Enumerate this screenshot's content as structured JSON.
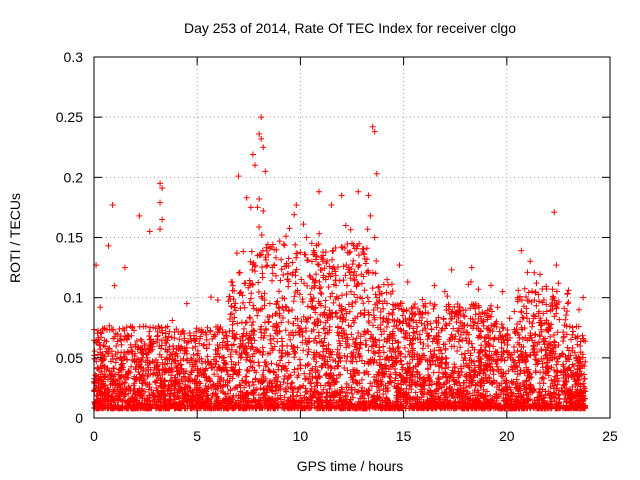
{
  "chart_data": {
    "type": "scatter",
    "title": "Day 253 of 2014, Rate Of TEC Index for receiver clgo",
    "xlabel": "GPS time / hours",
    "ylabel": "ROTI / TECUs",
    "xlim": [
      0,
      25
    ],
    "ylim": [
      0,
      0.3
    ],
    "x_ticks": [
      0,
      5,
      10,
      15,
      20,
      25
    ],
    "y_ticks": [
      0,
      0.05,
      0.1,
      0.15,
      0.2,
      0.25,
      0.3
    ],
    "x_tick_labels": [
      "0",
      "5",
      "10",
      "15",
      "20",
      "25"
    ],
    "y_tick_labels": [
      "0",
      "0.05",
      "0.1",
      "0.15",
      "0.2",
      "0.25",
      "0.3"
    ],
    "grid": true,
    "marker": "+",
    "marker_color": "#ff0000",
    "x_data_range": [
      0,
      23.8
    ],
    "series": [
      {
        "name": "ROTI",
        "points": [
          [
            0.1,
            0.127
          ],
          [
            0.9,
            0.177
          ],
          [
            0.7,
            0.143
          ],
          [
            2.2,
            0.168
          ],
          [
            2.7,
            0.155
          ],
          [
            3.2,
            0.195
          ],
          [
            3.3,
            0.191
          ],
          [
            3.2,
            0.179
          ],
          [
            3.3,
            0.165
          ],
          [
            3.2,
            0.157
          ],
          [
            7.0,
            0.201
          ],
          [
            7.4,
            0.183
          ],
          [
            7.6,
            0.175
          ],
          [
            7.7,
            0.219
          ],
          [
            7.8,
            0.21
          ],
          [
            8.0,
            0.236
          ],
          [
            8.1,
            0.25
          ],
          [
            8.1,
            0.232
          ],
          [
            8.2,
            0.225
          ],
          [
            8.3,
            0.205
          ],
          [
            8.0,
            0.182
          ],
          [
            8.2,
            0.172
          ],
          [
            9.7,
            0.169
          ],
          [
            9.8,
            0.177
          ],
          [
            10.9,
            0.188
          ],
          [
            11.5,
            0.177
          ],
          [
            12.0,
            0.185
          ],
          [
            12.2,
            0.16
          ],
          [
            12.8,
            0.188
          ],
          [
            13.3,
            0.185
          ],
          [
            13.4,
            0.168
          ],
          [
            13.5,
            0.242
          ],
          [
            13.6,
            0.238
          ],
          [
            13.7,
            0.203
          ],
          [
            13.6,
            0.15
          ],
          [
            22.3,
            0.171
          ],
          [
            22.4,
            0.127
          ],
          [
            22.5,
            0.112
          ],
          [
            21.0,
            0.121
          ],
          [
            19.8,
            0.105
          ],
          [
            18.3,
            0.125
          ],
          [
            16.5,
            0.11
          ],
          [
            15.2,
            0.113
          ],
          [
            14.8,
            0.127
          ],
          [
            14.2,
            0.115
          ],
          [
            1.5,
            0.125
          ],
          [
            1.0,
            0.11
          ],
          [
            5.5,
            0.075
          ],
          [
            6.0,
            0.098
          ],
          [
            6.7,
            0.113
          ],
          [
            9.0,
            0.147
          ],
          [
            9.3,
            0.151
          ],
          [
            10.3,
            0.15
          ],
          [
            11.1,
            0.135
          ],
          [
            12.5,
            0.145
          ],
          [
            23.7,
            0.1
          ],
          [
            23.5,
            0.09
          ],
          [
            0.3,
            0.092
          ],
          [
            4.5,
            0.095
          ],
          [
            17.0,
            0.105
          ]
        ]
      }
    ]
  }
}
